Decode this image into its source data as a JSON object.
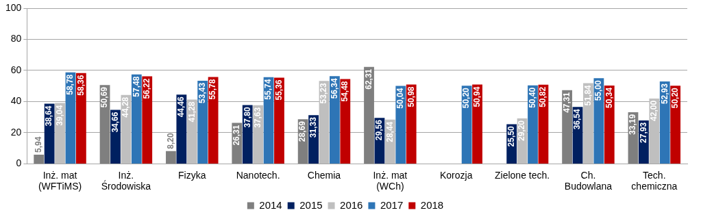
{
  "chart_data": {
    "type": "bar",
    "categories": [
      "Inż. mat\n(WFTiMS)",
      "Inż.\nŚrodowiska",
      "Fizyka",
      "Nanotech.",
      "Chemia",
      "Inż. mat\n(WCh)",
      "Korozja",
      "Zielone tech.",
      "Ch.\nBudowlana",
      "Tech.\nchemiczna"
    ],
    "series": [
      {
        "name": "2014",
        "color": "#7f7f7f",
        "values": [
          5.94,
          50.69,
          8.2,
          26.31,
          28.69,
          62.31,
          null,
          null,
          47.31,
          33.19
        ],
        "value_labels": [
          "5,94",
          "50,69",
          "8,20",
          "26,31",
          "28,69",
          "62,31",
          null,
          null,
          "47,31",
          "33,19"
        ]
      },
      {
        "name": "2015",
        "color": "#002060",
        "values": [
          38.64,
          34.66,
          44.46,
          37.8,
          31.33,
          29.56,
          null,
          25.5,
          36.54,
          27.93
        ],
        "value_labels": [
          "38,64",
          "34,66",
          "44,46",
          "37,80",
          "31,33",
          "29,56",
          null,
          "25,50",
          "36,54",
          "27,93"
        ]
      },
      {
        "name": "2016",
        "color": "#bfbfbf",
        "values": [
          39.04,
          44.28,
          41.28,
          37.63,
          53.23,
          28.44,
          null,
          29.2,
          51.84,
          42.0
        ],
        "value_labels": [
          "39,04",
          "44,28",
          "41,28",
          "37,63",
          "53,23",
          "28,44",
          null,
          "29,20",
          "51,84",
          "42,00"
        ]
      },
      {
        "name": "2017",
        "color": "#2e75b6",
        "values": [
          58.78,
          57.48,
          53.43,
          55.74,
          56.34,
          50.04,
          50.2,
          50.4,
          55.0,
          52.93
        ],
        "value_labels": [
          "58,78",
          "57,48",
          "53,43",
          "55,74",
          "56,34",
          "50,04",
          "50,20",
          "50,40",
          "55,00",
          "52,93"
        ]
      },
      {
        "name": "2018",
        "color": "#c00000",
        "values": [
          58.36,
          56.22,
          55.78,
          55.36,
          54.48,
          50.98,
          50.94,
          50.82,
          50.34,
          50.2
        ],
        "value_labels": [
          "58,36",
          "56,22",
          "55,78",
          "55,36",
          "54,48",
          "50,98",
          "50,94",
          "50,82",
          "50,34",
          "50,20"
        ]
      }
    ],
    "ylim": [
      0,
      100
    ],
    "yticks": [
      0,
      20,
      40,
      60,
      80,
      100
    ],
    "grid": "y",
    "legend": "bottom"
  }
}
